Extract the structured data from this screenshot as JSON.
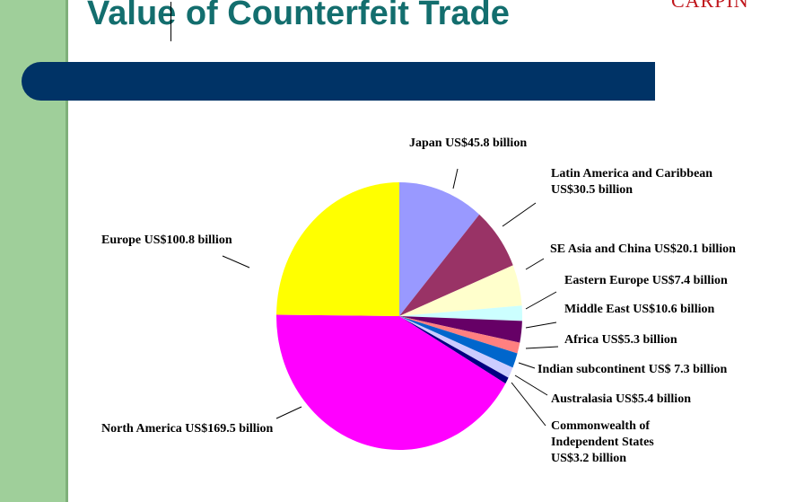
{
  "title": "Value of Counterfeit Trade",
  "corner_text": "CARPIN",
  "colors": {
    "side_strip": "#9fcf9a",
    "title": "#136e6e",
    "banner": "#003366",
    "corner_text": "#c0161c"
  },
  "chart_data": {
    "type": "pie",
    "unit": "US$ billion",
    "slices": [
      {
        "label": [
          "Japan US$45.8 billion"
        ],
        "value": 45.8,
        "color": "#9999ff"
      },
      {
        "label": [
          "Latin America and Caribbean",
          "US$30.5 billion"
        ],
        "value": 30.5,
        "color": "#993366"
      },
      {
        "label": [
          "SE Asia and China US$20.1 billion"
        ],
        "value": 20.1,
        "color": "#ffffcc"
      },
      {
        "label": [
          "Eastern Europe US$7.4 billion"
        ],
        "value": 7.4,
        "color": "#ccffff"
      },
      {
        "label": [
          "Middle East US$10.6 billion"
        ],
        "value": 10.6,
        "color": "#660066"
      },
      {
        "label": [
          "Africa US$5.3 billion"
        ],
        "value": 5.3,
        "color": "#ff8080"
      },
      {
        "label": [
          "Indian subcontinent US$ 7.3 billion"
        ],
        "value": 7.3,
        "color": "#0066cc"
      },
      {
        "label": [
          "Australasia US$5.4 billion"
        ],
        "value": 5.4,
        "color": "#ccccff"
      },
      {
        "label": [
          "Commonwealth of",
          "Independent States",
          "US$3.2 billion"
        ],
        "value": 3.2,
        "color": "#000080"
      },
      {
        "label": [
          "North America US$169.5 billion"
        ],
        "value": 169.5,
        "color": "#ff00ff"
      },
      {
        "label": [
          "Europe US$100.8 billion"
        ],
        "value": 100.8,
        "color": "#ffff00"
      }
    ]
  }
}
